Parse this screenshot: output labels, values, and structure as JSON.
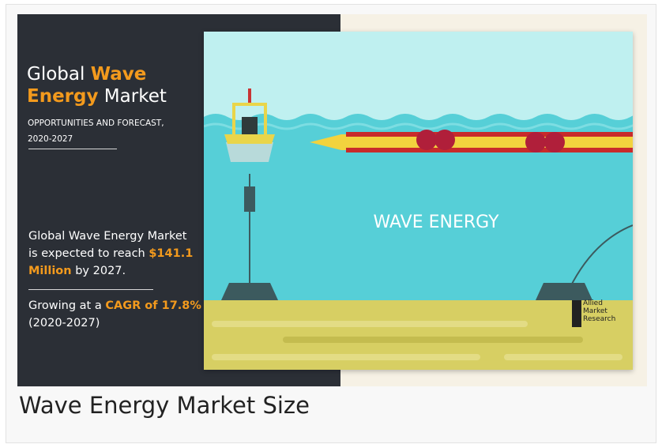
{
  "infographic": {
    "title": {
      "part1": "Global",
      "highlight1": "Wave",
      "highlight2": "Energy",
      "part2": "Market"
    },
    "subtitle": "OPPORTUNITIES AND FORECAST,",
    "years": "2020-2027",
    "stat1": {
      "before": "Global Wave Energy Market is expected to reach",
      "highlight": "$141.1 Million",
      "after": "by 2027."
    },
    "stat2": {
      "before": "Growing at a",
      "highlight": "CAGR of 17.8%",
      "after": "(2020-2027)"
    },
    "illustration_label": "WAVE ENERGY",
    "logo": [
      "Allied",
      "Market",
      "Research"
    ]
  },
  "caption": "Wave Energy Market Size"
}
